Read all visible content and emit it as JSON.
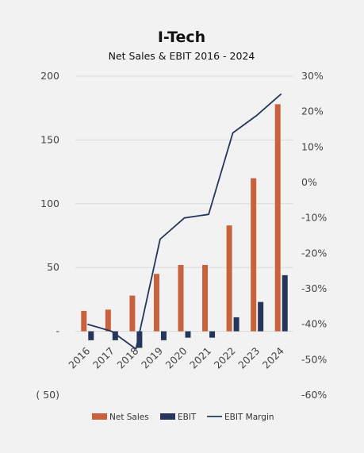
{
  "chart_data": {
    "type": "bar",
    "title": "I-Tech",
    "subtitle": "Net Sales & EBIT 2016 - 2024",
    "categories": [
      "2016",
      "2017",
      "2018",
      "2019",
      "2020",
      "2021",
      "2022",
      "2023",
      "2024"
    ],
    "series": [
      {
        "name": "Net Sales",
        "type": "bar",
        "axis": "left",
        "color": "#c8623c",
        "values": [
          16,
          17,
          28,
          45,
          52,
          52,
          83,
          120,
          178
        ]
      },
      {
        "name": "EBIT",
        "type": "bar",
        "axis": "left",
        "color": "#26365a",
        "values": [
          -7,
          -7,
          -13,
          -7,
          -5,
          -5,
          11,
          23,
          44
        ]
      },
      {
        "name": "EBIT Margin",
        "type": "line",
        "axis": "right",
        "color": "#26365a",
        "values": [
          -40,
          -42,
          -47,
          -16,
          -10,
          -9,
          14,
          19,
          25
        ]
      }
    ],
    "y_left": {
      "ylim": [
        -50,
        200
      ],
      "ticks": [
        200,
        150,
        100,
        50,
        0,
        -50
      ],
      "tick_labels": [
        "200",
        "150",
        "100",
        "50",
        "-",
        "( 50)"
      ]
    },
    "y_right": {
      "ylim": [
        -60,
        30
      ],
      "ticks": [
        30,
        20,
        10,
        0,
        -10,
        -20,
        -30,
        -40,
        -50,
        -60
      ],
      "tick_labels": [
        "30%",
        "20%",
        "10%",
        "0%",
        "-10%",
        "-20%",
        "-30%",
        "-40%",
        "-50%",
        "-60%"
      ]
    },
    "grid": true,
    "legend": "bottom"
  }
}
